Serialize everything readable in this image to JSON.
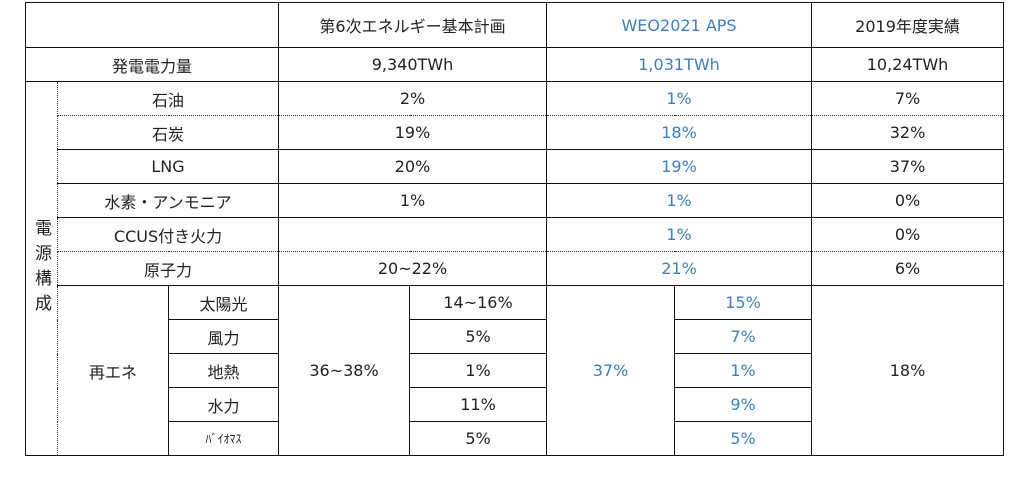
{
  "header": {
    "col1": "第6次エネルギー基本計画",
    "col2": "WEO2021 APS",
    "col3": "2019年度実績"
  },
  "generation": {
    "label": "発電電力量",
    "col1": "9,340TWh",
    "col2": "1,031TWh",
    "col3": "10,24TWh"
  },
  "group_label": "電源構成",
  "rows": [
    {
      "label": "石油",
      "col1": "2%",
      "col2": "1%",
      "col3": "7%"
    },
    {
      "label": "石炭",
      "col1": "19%",
      "col2": "18%",
      "col3": "32%"
    },
    {
      "label": "LNG",
      "col1": "20%",
      "col2": "19%",
      "col3": "37%"
    },
    {
      "label": "水素・アンモニア",
      "col1": "1%",
      "col2": "1%",
      "col3": "0%"
    },
    {
      "label": "CCUS付き火力",
      "col1": "",
      "col2": "1%",
      "col3": "0%"
    },
    {
      "label": "原子力",
      "col1": "20~22%",
      "col2": "21%",
      "col3": "6%"
    }
  ],
  "renewables": {
    "label": "再エネ",
    "col1_total": "36~38%",
    "col2_total": "37%",
    "col3_total": "18%",
    "items": [
      {
        "label": "太陽光",
        "col1": "14~16%",
        "col2": "15%"
      },
      {
        "label": "風力",
        "col1": "5%",
        "col2": "7%"
      },
      {
        "label": "地熱",
        "col1": "1%",
        "col2": "1%"
      },
      {
        "label": "水力",
        "col1": "11%",
        "col2": "9%"
      },
      {
        "label": "ﾊﾞｲｵﾏｽ",
        "col1": "5%",
        "col2": "5%"
      }
    ]
  }
}
